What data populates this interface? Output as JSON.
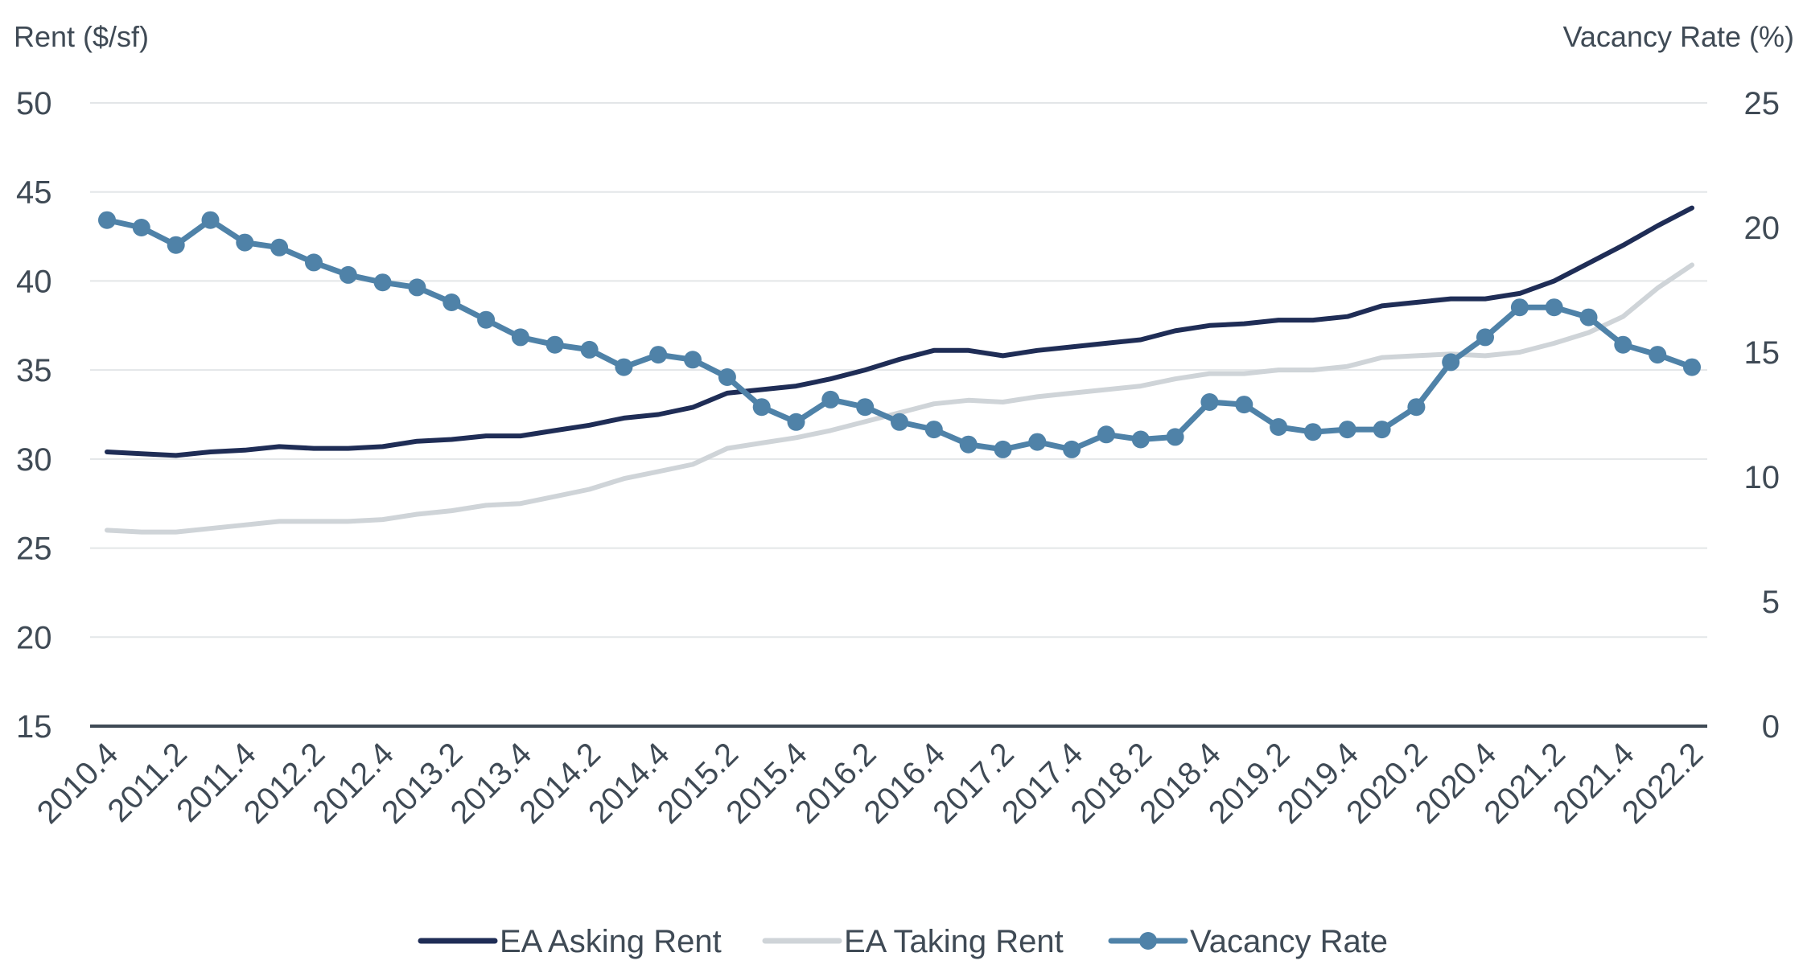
{
  "chart_data": {
    "type": "line",
    "left_axis_title": "Rent ($/sf)",
    "right_axis_title": "Vacancy Rate (%)",
    "left_ylim": [
      15,
      50
    ],
    "left_ticks": [
      15,
      20,
      25,
      30,
      35,
      40,
      45,
      50
    ],
    "right_ylim": [
      0,
      25
    ],
    "right_ticks": [
      0,
      5,
      10,
      15,
      20,
      25
    ],
    "grid": true,
    "legend_position": "bottom-center",
    "x": [
      "2010.4",
      "2011.1",
      "2011.2",
      "2011.3",
      "2011.4",
      "2012.1",
      "2012.2",
      "2012.3",
      "2012.4",
      "2013.1",
      "2013.2",
      "2013.3",
      "2013.4",
      "2014.1",
      "2014.2",
      "2014.3",
      "2014.4",
      "2015.1",
      "2015.2",
      "2015.3",
      "2015.4",
      "2016.1",
      "2016.2",
      "2016.3",
      "2016.4",
      "2017.1",
      "2017.2",
      "2017.3",
      "2017.4",
      "2018.1",
      "2018.2",
      "2018.3",
      "2018.4",
      "2019.1",
      "2019.2",
      "2019.3",
      "2019.4",
      "2020.1",
      "2020.2",
      "2020.3",
      "2020.4",
      "2021.1",
      "2021.2",
      "2021.3",
      "2021.4",
      "2022.1",
      "2022.2"
    ],
    "x_tick_labels": [
      "2010.4",
      "2011.2",
      "2011.4",
      "2012.2",
      "2012.4",
      "2013.2",
      "2013.4",
      "2014.2",
      "2014.4",
      "2015.2",
      "2015.4",
      "2016.2",
      "2016.4",
      "2017.2",
      "2017.4",
      "2018.2",
      "2018.4",
      "2019.2",
      "2019.4",
      "2020.2",
      "2020.4",
      "2021.2",
      "2021.4",
      "2022.2"
    ],
    "series": [
      {
        "name": "EA Asking Rent",
        "axis": "left",
        "color": "#1f2d56",
        "markers": false,
        "values": [
          30.4,
          30.3,
          30.2,
          30.4,
          30.5,
          30.7,
          30.6,
          30.6,
          30.7,
          31.0,
          31.1,
          31.3,
          31.3,
          31.6,
          31.9,
          32.3,
          32.5,
          32.9,
          33.7,
          33.9,
          34.1,
          34.5,
          35.0,
          35.6,
          36.1,
          36.1,
          35.8,
          36.1,
          36.3,
          36.5,
          36.7,
          37.2,
          37.5,
          37.6,
          37.8,
          37.8,
          38.0,
          38.6,
          38.8,
          39.0,
          39.0,
          39.3,
          40.0,
          41.0,
          42.0,
          43.1,
          44.1
        ]
      },
      {
        "name": "EA Taking Rent",
        "axis": "left",
        "color": "#cfd4d8",
        "markers": false,
        "values": [
          26.0,
          25.9,
          25.9,
          26.1,
          26.3,
          26.5,
          26.5,
          26.5,
          26.6,
          26.9,
          27.1,
          27.4,
          27.5,
          27.9,
          28.3,
          28.9,
          29.3,
          29.7,
          30.6,
          30.9,
          31.2,
          31.6,
          32.1,
          32.6,
          33.1,
          33.3,
          33.2,
          33.5,
          33.7,
          33.9,
          34.1,
          34.5,
          34.8,
          34.8,
          35.0,
          35.0,
          35.2,
          35.7,
          35.8,
          35.9,
          35.8,
          36.0,
          36.5,
          37.1,
          38.0,
          39.6,
          40.9
        ]
      },
      {
        "name": "Vacancy Rate",
        "axis": "right",
        "color": "#4f82a8",
        "markers": true,
        "values": [
          20.3,
          20.0,
          19.3,
          20.3,
          19.4,
          19.2,
          18.6,
          18.1,
          17.8,
          17.6,
          17.0,
          16.3,
          15.6,
          15.3,
          15.1,
          14.4,
          14.9,
          14.7,
          14.0,
          12.8,
          12.2,
          13.1,
          12.8,
          12.2,
          11.9,
          11.3,
          11.1,
          11.4,
          11.1,
          11.7,
          11.5,
          11.6,
          13.0,
          12.9,
          12.0,
          11.8,
          11.9,
          11.9,
          12.8,
          14.6,
          15.6,
          16.8,
          16.8,
          16.4,
          15.3,
          14.9,
          14.4
        ]
      }
    ]
  }
}
